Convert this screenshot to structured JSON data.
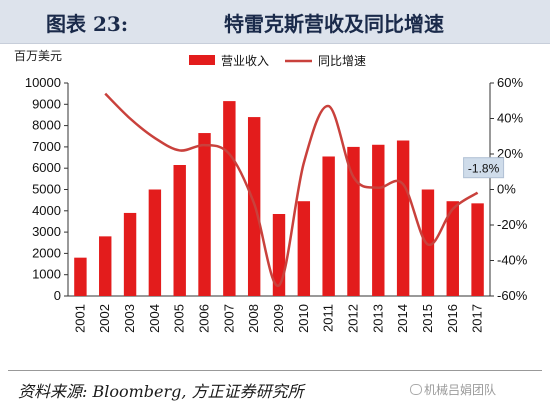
{
  "header": {
    "figure_number": "图表 23:",
    "title": "特雷克斯营收及同比增速"
  },
  "unit_label": "百万美元",
  "source": "资料来源: Bloomberg, 方正证券研究所",
  "watermark": "机械吕娟团队",
  "colors": {
    "bar": "#e31c1c",
    "line": "#c9413c",
    "annotation_bg": "#cfdcea"
  },
  "chart_data": {
    "type": "bar+line",
    "categories": [
      "2001",
      "2002",
      "2003",
      "2004",
      "2005",
      "2006",
      "2007",
      "2008",
      "2009",
      "2010",
      "2011",
      "2012",
      "2013",
      "2014",
      "2015",
      "2016",
      "2017"
    ],
    "series": [
      {
        "name": "营业收入",
        "type": "bar",
        "axis": "left",
        "values": [
          1800,
          2800,
          3900,
          5000,
          6150,
          7650,
          9150,
          8400,
          3850,
          4450,
          6550,
          7000,
          7100,
          7300,
          5000,
          4450,
          4350
        ]
      },
      {
        "name": "同比增速",
        "type": "line",
        "axis": "right",
        "unit": "%",
        "values": [
          null,
          54,
          40,
          29,
          22,
          25,
          20,
          -8,
          -54,
          15,
          47,
          7,
          1,
          3,
          -31,
          -11,
          -1.8
        ]
      }
    ],
    "left_axis": {
      "min": 0,
      "max": 10000,
      "step": 1000,
      "ticks": [
        "0",
        "1000",
        "2000",
        "3000",
        "4000",
        "5000",
        "6000",
        "7000",
        "8000",
        "9000",
        "10000"
      ]
    },
    "right_axis": {
      "min": -60,
      "max": 60,
      "step": 20,
      "ticks": [
        "-60%",
        "-40%",
        "-20%",
        "0%",
        "20%",
        "40%",
        "60%"
      ]
    },
    "legend": {
      "position": "top-center",
      "bar_label": "营业收入",
      "line_label": "同比增速"
    },
    "annotation": {
      "text": "-1.8%",
      "target_index": 16
    },
    "grid": false
  }
}
